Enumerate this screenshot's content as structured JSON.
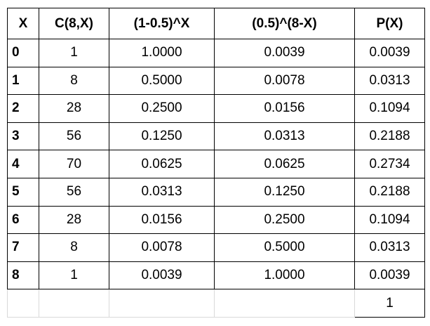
{
  "table": {
    "header": [
      "X",
      "C(8,X)",
      "(1-0.5)^X",
      "(0.5)^(8-X)",
      "P(X)"
    ],
    "rows": [
      [
        "0",
        "1",
        "1.0000",
        "0.0039",
        "0.0039"
      ],
      [
        "1",
        "8",
        "0.5000",
        "0.0078",
        "0.0313"
      ],
      [
        "2",
        "28",
        "0.2500",
        "0.0156",
        "0.1094"
      ],
      [
        "3",
        "56",
        "0.1250",
        "0.0313",
        "0.2188"
      ],
      [
        "4",
        "70",
        "0.0625",
        "0.0625",
        "0.2734"
      ],
      [
        "5",
        "56",
        "0.0313",
        "0.1250",
        "0.2188"
      ],
      [
        "6",
        "28",
        "0.0156",
        "0.2500",
        "0.1094"
      ],
      [
        "7",
        "8",
        "0.0078",
        "0.5000",
        "0.0313"
      ],
      [
        "8",
        "1",
        "0.0039",
        "1.0000",
        "0.0039"
      ]
    ],
    "total": "1"
  }
}
